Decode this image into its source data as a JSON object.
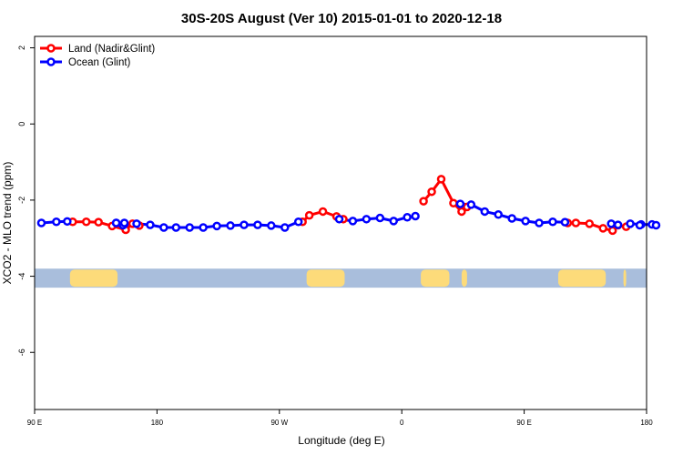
{
  "chart_data": {
    "type": "line",
    "title": "30S-20S August (Ver 10)   2015-01-01 to 2020-12-18",
    "xlabel": "Longitude (deg E)",
    "ylabel": "XCO2 - MLO trend (ppm)",
    "x_ticks": [
      {
        "value": 90,
        "label": "90 E"
      },
      {
        "value": 180,
        "label": "180"
      },
      {
        "value": 270,
        "label": "90 W"
      },
      {
        "value": 360,
        "label": "0"
      },
      {
        "value": 450,
        "label": "90 E"
      },
      {
        "value": 540,
        "label": "180"
      }
    ],
    "y_ticks": [
      {
        "value": 2,
        "label": "2"
      },
      {
        "value": 0,
        "label": "0"
      },
      {
        "value": -2,
        "label": "-2"
      },
      {
        "value": -4,
        "label": "-4"
      },
      {
        "value": -6,
        "label": "-6"
      }
    ],
    "xlim": [
      90,
      540
    ],
    "ylim": [
      -7.5,
      2.3
    ],
    "grid": false,
    "legend_position": "top-left",
    "land_mask_band": {
      "y_range": [
        -4.3,
        -3.8
      ],
      "ocean_color": "#a9bedc",
      "land_color": "#fddb7a",
      "land_segments": [
        [
          116,
          151
        ],
        [
          290,
          318
        ],
        [
          374,
          395
        ],
        [
          404,
          408
        ],
        [
          475,
          510
        ],
        [
          523,
          525
        ]
      ]
    },
    "series": [
      {
        "name": "Land (Nadir&Glint)",
        "color": "#ff0000",
        "line_segments": [
          {
            "x": [
              118,
              128,
              137,
              147,
              157,
              162,
              167
            ],
            "y": [
              -2.57,
              -2.57,
              -2.58,
              -2.68,
              -2.78,
              -2.62,
              -2.67
            ]
          },
          {
            "x": [
              287,
              292,
              302,
              312,
              317
            ],
            "y": [
              -2.57,
              -2.4,
              -2.3,
              -2.43,
              -2.5
            ]
          },
          {
            "x": [
              376,
              382,
              389,
              398,
              404,
              408
            ],
            "y": [
              -2.03,
              -1.78,
              -1.45,
              -2.08,
              -2.3,
              -2.18
            ]
          },
          {
            "x": [
              482,
              488,
              498,
              508,
              515,
              519,
              525
            ],
            "y": [
              -2.6,
              -2.6,
              -2.62,
              -2.74,
              -2.8,
              -2.66,
              -2.7
            ]
          }
        ]
      },
      {
        "name": "Ocean (Glint)",
        "color": "#0000ff",
        "line_segments": [
          {
            "x": [
              95,
              106,
              114
            ],
            "y": [
              -2.6,
              -2.57,
              -2.56
            ]
          },
          {
            "x": [
              150,
              156,
              165,
              175,
              185,
              194,
              204,
              214,
              224,
              234,
              244,
              254,
              264,
              274,
              284
            ],
            "y": [
              -2.6,
              -2.63,
              -2.62,
              -2.65,
              -2.72,
              -2.72,
              -2.72,
              -2.72,
              -2.68,
              -2.67,
              -2.65,
              -2.65,
              -2.67,
              -2.72,
              -2.57
            ]
          },
          {
            "x": [
              314,
              324,
              334,
              344,
              354,
              364,
              370
            ],
            "y": [
              -2.5,
              -2.55,
              -2.5,
              -2.47,
              -2.55,
              -2.45,
              -2.42
            ]
          },
          {
            "x": [
              403,
              411,
              421,
              431,
              441,
              451,
              461,
              471,
              480
            ],
            "y": [
              -2.1,
              -2.12,
              -2.3,
              -2.38,
              -2.48,
              -2.55,
              -2.6,
              -2.57,
              -2.58
            ]
          },
          {
            "x": [
              528,
              536,
              544
            ],
            "y": [
              -2.62,
              -2.64,
              -2.64
            ]
          }
        ],
        "standalone_points": {
          "x": [
            150,
            155,
            156,
            514,
            519,
            535,
            547
          ],
          "y": [
            -2.6,
            -2.66,
            -2.6,
            -2.62,
            -2.65,
            -2.66,
            -2.66
          ]
        }
      }
    ]
  }
}
